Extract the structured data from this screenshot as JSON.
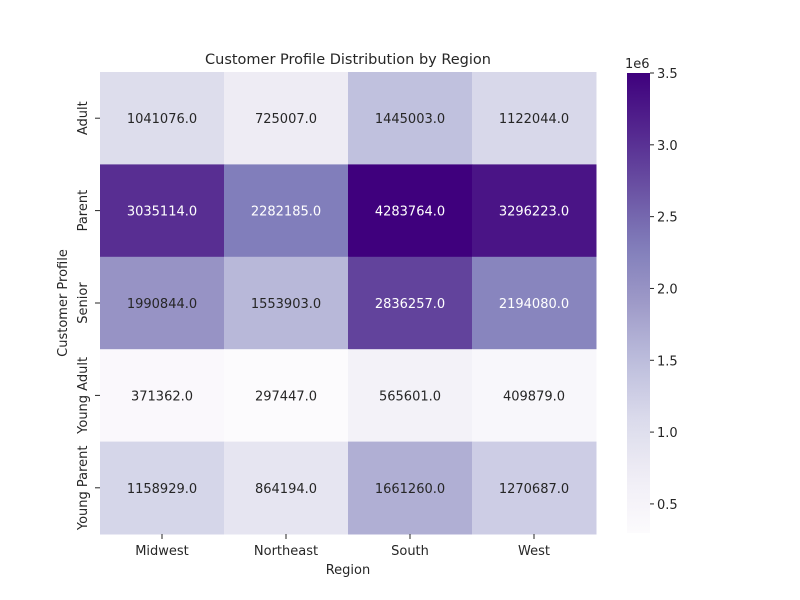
{
  "chart_data": {
    "type": "heatmap",
    "title": "Customer Profile Distribution by Region",
    "xlabel": "Region",
    "ylabel": "Customer Profile",
    "x_categories": [
      "Midwest",
      "Northeast",
      "South",
      "West"
    ],
    "y_categories": [
      "Adult",
      "Parent",
      "Senior",
      "Young Adult",
      "Young Parent"
    ],
    "values": [
      [
        1041076.0,
        725007.0,
        1445003.0,
        1122044.0
      ],
      [
        3035114.0,
        2282185.0,
        4283764.0,
        3296223.0
      ],
      [
        1990844.0,
        1553903.0,
        2836257.0,
        2194080.0
      ],
      [
        371362.0,
        297447.0,
        565601.0,
        409879.0
      ],
      [
        1158929.0,
        864194.0,
        1661260.0,
        1270687.0
      ]
    ],
    "cell_labels": [
      [
        "1041076.0",
        "725007.0",
        "1445003.0",
        "1122044.0"
      ],
      [
        "3035114.0",
        "2282185.0",
        "4283764.0",
        "3296223.0"
      ],
      [
        "1990844.0",
        "1553903.0",
        "2836257.0",
        "2194080.0"
      ],
      [
        "371362.0",
        "297447.0",
        "565601.0",
        "409879.0"
      ],
      [
        "1158929.0",
        "864194.0",
        "1661260.0",
        "1270687.0"
      ]
    ],
    "colormap": "Purples",
    "colorbar": {
      "ticks": [
        0.5,
        1.0,
        1.5,
        2.0,
        2.5,
        3.0,
        3.5
      ],
      "tick_labels": [
        "0.5",
        "1.0",
        "1.5",
        "2.0",
        "2.5",
        "3.0",
        "3.5"
      ],
      "scale_label": "1e6",
      "range": [
        297447.0,
        3500000.0
      ]
    }
  }
}
